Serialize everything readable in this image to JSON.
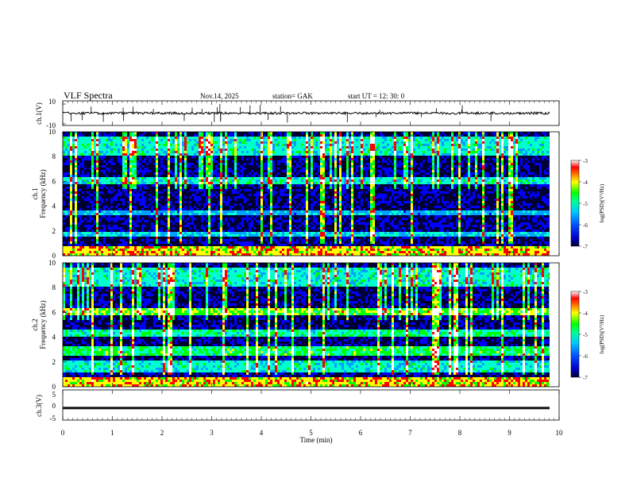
{
  "header": {
    "title": "VLF  Spectra",
    "date": "Nov.14,  2025",
    "station": "station= GAK",
    "start_ut": "start  UT  =    12: 30: 0"
  },
  "chart_data": [
    {
      "type": "line",
      "panel": "ch1-waveform",
      "ylabel": "ch.1(V)",
      "ylim": [
        -10,
        10
      ],
      "yticks": [
        "10",
        "-10"
      ],
      "baseline": 0
    },
    {
      "type": "heatmap",
      "panel": "ch1-spectrogram",
      "ylabel": "ch.1\nFrequency  (kHz)",
      "ylabel_lines": [
        "ch.1",
        "Frequency  (kHz)"
      ],
      "ylim": [
        0,
        10
      ],
      "yticks": [
        "0",
        "2",
        "4",
        "6",
        "8",
        "10"
      ],
      "colorbar": {
        "label": "log(PSD)(V²/Hz)",
        "range": [
          -7,
          -3
        ],
        "ticks": [
          "-3",
          "-4",
          "-5",
          "-6",
          "-7"
        ]
      }
    },
    {
      "type": "heatmap",
      "panel": "ch2-spectrogram",
      "ylabel": "ch.2\nFrequency  (kHz)",
      "ylabel_lines": [
        "ch.2",
        "Frequency  (kHz)"
      ],
      "ylim": [
        0,
        10
      ],
      "yticks": [
        "0",
        "2",
        "4",
        "6",
        "8",
        "10"
      ],
      "colorbar": {
        "label": "log(PSD)(V²/Hz)",
        "range": [
          -7,
          -3
        ],
        "ticks": [
          "-3",
          "-4",
          "-5",
          "-6",
          "-7"
        ]
      }
    },
    {
      "type": "line",
      "panel": "ch3-waveform",
      "ylabel": "ch.3(V)",
      "ylim": [
        -5,
        5
      ],
      "yticks": [
        "5",
        "0",
        "-5"
      ],
      "baseline": -1
    }
  ],
  "xaxis": {
    "label": "Time  (min)",
    "range": [
      0,
      10
    ],
    "data_end": 9.85,
    "ticks": [
      "0",
      "1",
      "2",
      "3",
      "4",
      "5",
      "6",
      "7",
      "8",
      "9",
      "10"
    ]
  },
  "colors": {
    "colormap": [
      "#000066",
      "#0000ff",
      "#00a0ff",
      "#00ffcc",
      "#00ff00",
      "#ffff00",
      "#ff0000",
      "#ffffff"
    ]
  }
}
